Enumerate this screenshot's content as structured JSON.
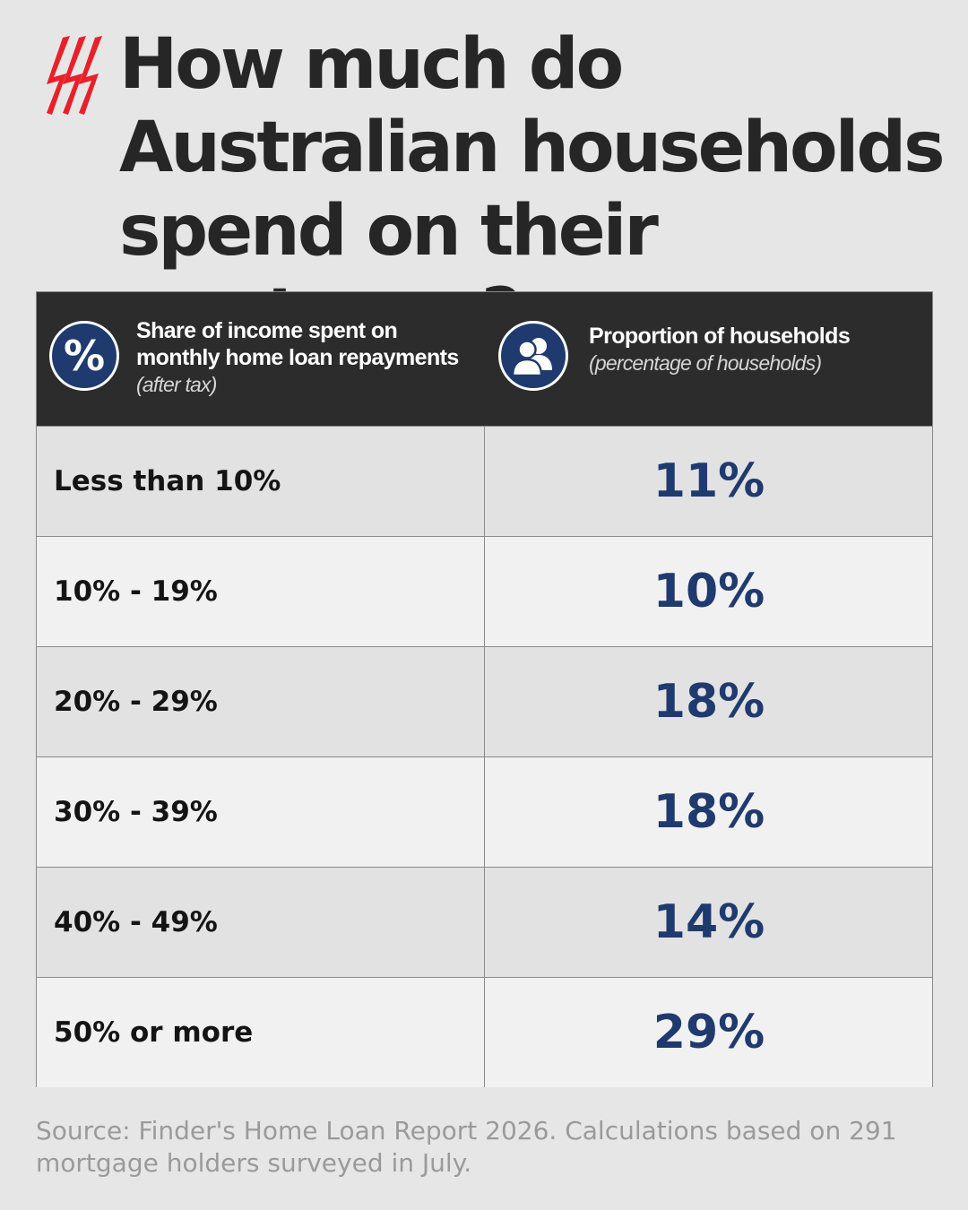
{
  "title": "How much do Australian households spend on their mortgage?",
  "header": {
    "col1_main": "Share of income spent on monthly home loan repayments",
    "col1_sub": "(after tax)",
    "col2_main": "Proportion of households",
    "col2_sub": "(percentage of households)",
    "col1_icon": "percent-icon",
    "col2_icon": "people-icon"
  },
  "chart_data": {
    "type": "table",
    "columns": [
      "Share of income spent on monthly home loan repayments (after tax)",
      "Proportion of households (percentage of households)"
    ],
    "rows": [
      {
        "band": "Less than 10%",
        "value": "11%"
      },
      {
        "band": "10% - 19%",
        "value": "10%"
      },
      {
        "band": "20% - 29%",
        "value": "18%"
      },
      {
        "band": "30% - 39%",
        "value": "18%"
      },
      {
        "band": "40% - 49%",
        "value": "14%"
      },
      {
        "band": "50% or more",
        "value": "29%"
      }
    ]
  },
  "source": "Source: Finder's Home Loan Report 2026. Calculations based on 291 mortgage holders surveyed in July.",
  "colors": {
    "background": "#e6e6e6",
    "header": "#2c2c2c",
    "accent_blue": "#1f3a6e",
    "logo_red": "#e8202a"
  },
  "logo": "sbs-logo"
}
